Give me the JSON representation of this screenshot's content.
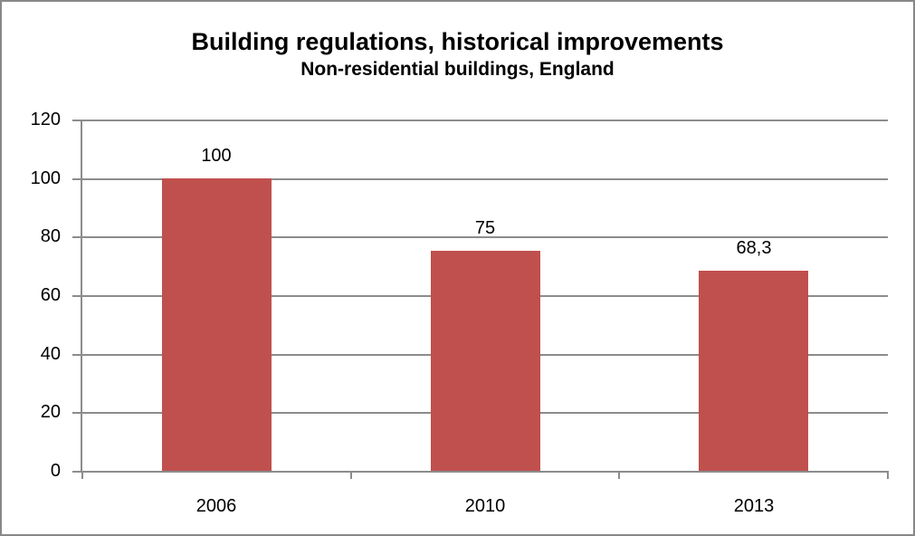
{
  "chart_data": {
    "type": "bar",
    "title": "Building regulations, historical improvements",
    "subtitle": "Non-residential buildings, England",
    "categories": [
      "2006",
      "2010",
      "2013"
    ],
    "values": [
      100,
      75,
      68.3
    ],
    "data_labels": [
      "100",
      "75",
      "68,3"
    ],
    "xlabel": "",
    "ylabel": "",
    "ylim": [
      0,
      120
    ],
    "yticks": [
      0,
      20,
      40,
      60,
      80,
      100,
      120
    ],
    "grid": true,
    "legend": "none",
    "colors": {
      "bar": "#C0504D",
      "gridline": "#8C8C8C",
      "axis": "#8C8C8C",
      "text": "#000000",
      "outer_border": "#888888"
    }
  }
}
